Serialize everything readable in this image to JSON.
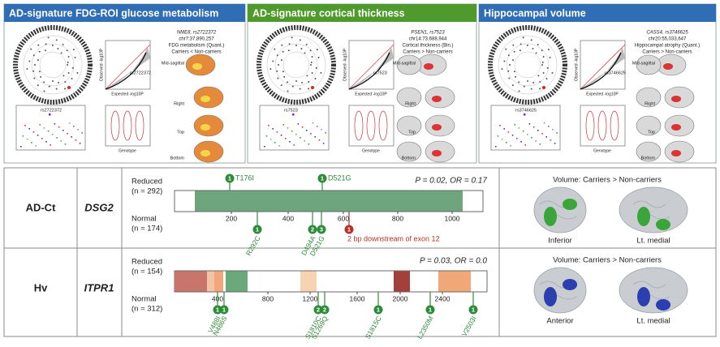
{
  "panels": [
    {
      "title": "AD-signature FDG-ROI glucose metabolism",
      "color": "#2f6db4",
      "gene_snp": "NME8, rs2722372",
      "location": "chr7:37,890,257",
      "phenotype": "FDG metabolism (Quant.)",
      "direction": "Carriers < Non-carriers",
      "snp": "rs2722372",
      "views": [
        "Mid-sagittal",
        "Right",
        "Top",
        "Bottom"
      ],
      "x_label": "Expected -log10P",
      "y_label": "Observed -log10P",
      "genotype_label": "Genotype"
    },
    {
      "title": "AD-signature cortical thickness",
      "color": "#4f9a2c",
      "gene_snp": "PSEN1, rs7523",
      "location": "chr14:73,688,944",
      "phenotype": "Cortical thickness (Bin.)",
      "direction": "Carriers > Non-carriers",
      "snp": "rs7523",
      "views": [
        "Mid-sagittal",
        "Right",
        "Top",
        "Bottom"
      ],
      "x_label": "Expected -log10P",
      "y_label": "Observed -log10P",
      "genotype_label": "Genotype"
    },
    {
      "title": "Hippocampal volume",
      "color": "#2f6db4",
      "gene_snp": "CASS4, rs3746625",
      "location": "chr20:55,033,647",
      "phenotype": "Hippocampal atrophy (Quant.)",
      "direction": "Carriers > Non-carriers",
      "snp": "rs3746625",
      "views": [
        "Mid-sagittal",
        "Right",
        "Top",
        "Bottom"
      ],
      "x_label": "Expected -log10P",
      "y_label": "Observed -log10P",
      "genotype_label": "Genotype"
    }
  ],
  "rows": [
    {
      "group": "AD-Ct",
      "gene": "DSG2",
      "reduced": "Reduced",
      "reduced_n": "(n = 292)",
      "normal": "Normal",
      "normal_n": "(n = 174)",
      "stats": "P = 0.02, OR = 0.17",
      "ticks": [
        200,
        400,
        600,
        800,
        1000
      ],
      "variants_above": [
        {
          "count": 1,
          "label": "T176I",
          "color": "#2e8b3a"
        },
        {
          "count": 1,
          "label": "D521G",
          "color": "#2e8b3a"
        }
      ],
      "variants_below": [
        {
          "count": 1,
          "label": "R292C",
          "color": "#2e8b3a"
        },
        {
          "count": 2,
          "label": "D494A",
          "color": "#2e8b3a"
        },
        {
          "count": 3,
          "label": "D521G",
          "color": "#2e8b3a"
        },
        {
          "count": 1,
          "label": "2 bp downstream of exon 12",
          "color": "#b8322a"
        }
      ],
      "brain_title": "Volume: Carriers > Non-carriers",
      "views": [
        "Inferior",
        "Lt. medial"
      ],
      "blob_color": "#3aa53a"
    },
    {
      "group": "Hv",
      "gene": "ITPR1",
      "reduced": "Reduced",
      "reduced_n": "(n = 154)",
      "normal": "Normal",
      "normal_n": "(n = 312)",
      "stats": "P = 0.03, OR = 0.0",
      "ticks": [
        400,
        800,
        1200,
        1600,
        2000,
        2400
      ],
      "variants_above": [],
      "variants_below": [
        {
          "count": 1,
          "label": "V488I",
          "color": "#2e8b3a"
        },
        {
          "count": 1,
          "label": "N486S",
          "color": "#2e8b3a"
        },
        {
          "count": 2,
          "label": "S1810C",
          "color": "#2e8b3a"
        },
        {
          "count": 2,
          "label": "S1269Q",
          "color": "#2e8b3a"
        },
        {
          "count": 1,
          "label": "S1815C",
          "color": "#2e8b3a"
        },
        {
          "count": 1,
          "label": "L2350M",
          "color": "#2e8b3a"
        },
        {
          "count": 1,
          "label": "V2503I",
          "color": "#2e8b3a"
        }
      ],
      "brain_title": "Volume: Carriers > Non-carriers",
      "views": [
        "Anterior",
        "Lt. medial"
      ],
      "blob_color": "#2b3fb0"
    }
  ]
}
